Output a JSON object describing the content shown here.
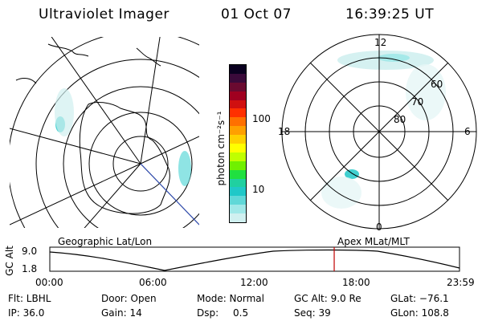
{
  "header": {
    "instrument": "Ultraviolet Imager",
    "date": "01 Oct 07",
    "time": "16:39:25 UT"
  },
  "colorbar": {
    "unit_label": "photon cm⁻²s⁻¹",
    "ticks": [
      "100",
      "10"
    ],
    "colors": [
      "#0a0020",
      "#3a0a3a",
      "#6a0a30",
      "#a00020",
      "#d01010",
      "#ff3000",
      "#ff7000",
      "#ffa000",
      "#ffd000",
      "#ffff00",
      "#c0ff00",
      "#70f000",
      "#20e040",
      "#20d0a0",
      "#20c8c8",
      "#60d8d8",
      "#a0e8e8",
      "#d0f0f0"
    ]
  },
  "panels": {
    "left_label": "Geographic Lat/Lon",
    "right_label": "Apex MLat/MLT",
    "right_hours": {
      "top": "12",
      "left": "18",
      "right": "6",
      "bottom": "0"
    },
    "right_lats": [
      "60",
      "70",
      "80"
    ]
  },
  "altitude_plot": {
    "ylabel": "GC Alt",
    "yticks": [
      "9.0",
      "1.8"
    ],
    "xticks": [
      "00:00",
      "06:00",
      "12:00",
      "18:00",
      "23:59"
    ],
    "marker_color": "#c00000",
    "marker_time_hours": 16.66
  },
  "status": {
    "filter": "Flt: LBHL",
    "ip": "IP: 36.0",
    "door": "Door: Open",
    "gain": "Gain: 14",
    "mode": "Mode: Normal",
    "dsp_label": "Dsp:",
    "dsp_value": "0.5",
    "gc_alt": "GC Alt: 9.0 Re",
    "seq": "Seq: 39",
    "glat": "GLat: −76.1",
    "glon": "GLon: 108.8"
  }
}
